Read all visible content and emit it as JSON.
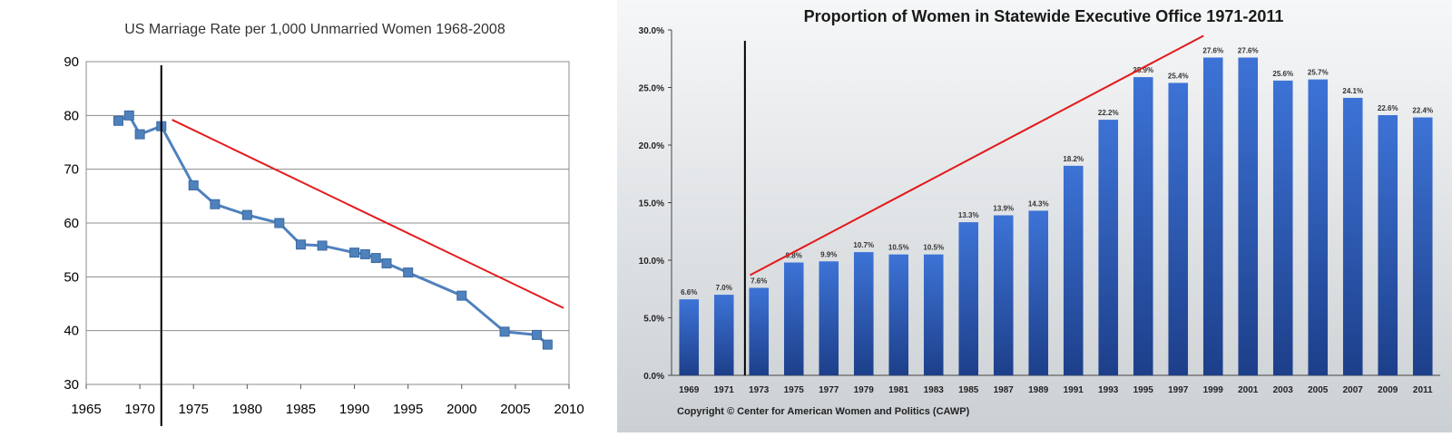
{
  "chart_data": [
    {
      "type": "line",
      "title": "US Marriage Rate per 1,000 Unmarried Women 1968-2008",
      "xlabel": "",
      "ylabel": "",
      "xlim": [
        1965,
        2010
      ],
      "ylim": [
        30,
        90
      ],
      "x_ticks": [
        "1965",
        "1970",
        "1975",
        "1980",
        "1985",
        "1990",
        "1995",
        "2000",
        "2005",
        "2010"
      ],
      "y_ticks": [
        "30",
        "40",
        "50",
        "60",
        "70",
        "80",
        "90"
      ],
      "grid": "horizontal",
      "legend": "none",
      "series": [
        {
          "color": "#4f81bd",
          "marker": "square",
          "x": [
            1968,
            1969,
            1970,
            1972,
            1975,
            1977,
            1980,
            1983,
            1985,
            1987,
            1990,
            1991,
            1992,
            1993,
            1995,
            2000,
            2004,
            2007,
            2008
          ],
          "y": [
            79.0,
            80.0,
            76.5,
            78.0,
            67.0,
            63.5,
            61.5,
            60.0,
            56.0,
            55.8,
            54.5,
            54.2,
            53.5,
            52.5,
            50.8,
            46.5,
            39.8,
            39.2,
            37.4
          ]
        }
      ],
      "annotations": [
        {
          "kind": "vertical-line",
          "color": "#000000",
          "x": 1972
        },
        {
          "kind": "trend-line",
          "color": "#e31a1c",
          "from": [
            1973,
            79.2
          ],
          "to": [
            2009.5,
            44.2
          ]
        }
      ]
    },
    {
      "type": "bar",
      "title": "Proportion of Women in Statewide Executive Office 1971-2011",
      "xlabel": "",
      "ylabel": "",
      "ylim": [
        0,
        30
      ],
      "y_ticks": [
        "0.0%",
        "5.0%",
        "10.0%",
        "15.0%",
        "20.0%",
        "25.0%",
        "30.0%"
      ],
      "grid": "none",
      "legend": "none",
      "bar_color": "#2f63c2",
      "categories": [
        "1969",
        "1971",
        "1973",
        "1975",
        "1977",
        "1979",
        "1981",
        "1983",
        "1985",
        "1987",
        "1989",
        "1991",
        "1993",
        "1995",
        "1997",
        "1999",
        "2001",
        "2003",
        "2005",
        "2007",
        "2009",
        "2011"
      ],
      "values": [
        6.6,
        7.0,
        7.6,
        9.8,
        9.9,
        10.7,
        10.5,
        10.5,
        13.3,
        13.9,
        14.3,
        18.2,
        22.2,
        25.9,
        25.4,
        27.6,
        27.6,
        25.6,
        25.7,
        24.1,
        22.6,
        22.4
      ],
      "data_labels": [
        "6.6%",
        "7.0%",
        "7.6%",
        "9.8%",
        "9.9%",
        "10.7%",
        "10.5%",
        "10.5%",
        "13.3%",
        "13.9%",
        "14.3%",
        "18.2%",
        "22.2%",
        "25.9%",
        "25.4%",
        "27.6%",
        "27.6%",
        "25.6%",
        "25.7%",
        "24.1%",
        "22.6%",
        "22.4%"
      ],
      "footer": "Copyright © Center for American Women and Politics (CAWP)",
      "annotations": [
        {
          "kind": "vertical-line",
          "color": "#000000",
          "x_between": [
            "1971",
            "1973"
          ]
        },
        {
          "kind": "trend-line",
          "color": "#e31a1c",
          "from": [
            "1973",
            8.7
          ],
          "to": [
            "1997",
            29.5
          ]
        }
      ]
    }
  ]
}
